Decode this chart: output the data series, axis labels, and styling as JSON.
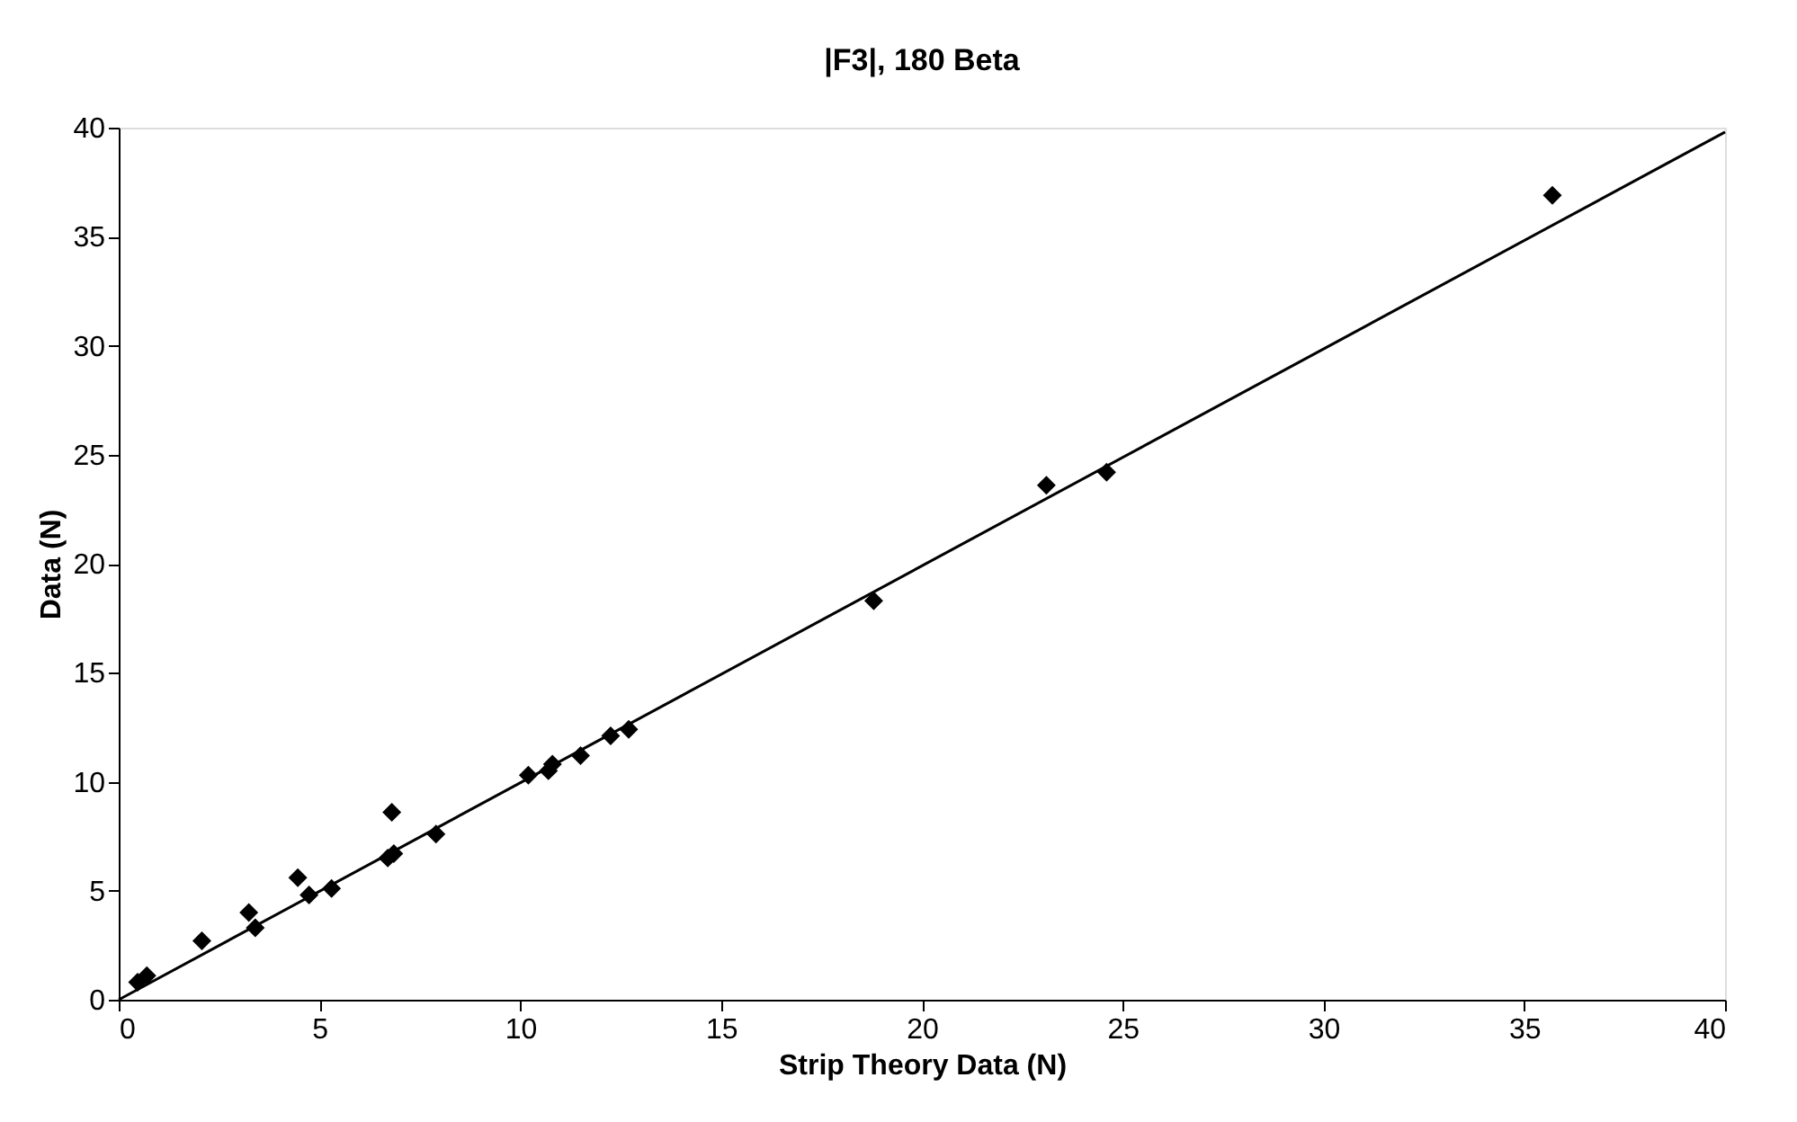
{
  "chart_data": {
    "type": "scatter",
    "title": "|F3|, 180 Beta",
    "xlabel": "Strip Theory Data (N)",
    "ylabel": "Data (N)",
    "xlim": [
      0,
      40
    ],
    "ylim": [
      0,
      40
    ],
    "xticks": [
      0,
      5,
      10,
      15,
      20,
      25,
      30,
      35,
      40
    ],
    "yticks": [
      0,
      5,
      10,
      15,
      20,
      25,
      30,
      35,
      40
    ],
    "grid": false,
    "series": [
      {
        "marker": "diamond",
        "color": "#000000",
        "x": [
          0.47,
          0.7,
          2.07,
          3.24,
          3.4,
          4.46,
          4.74,
          5.3,
          6.8,
          6.7,
          6.85,
          7.9,
          10.2,
          10.7,
          10.8,
          11.5,
          12.25,
          12.7,
          18.8,
          23.1,
          24.6,
          35.7
        ],
        "values": [
          0.8,
          1.1,
          2.7,
          4.0,
          3.3,
          5.6,
          4.8,
          5.1,
          8.6,
          6.5,
          6.7,
          7.6,
          10.3,
          10.5,
          10.8,
          11.2,
          12.1,
          12.4,
          18.3,
          23.6,
          24.2,
          36.9
        ]
      },
      {
        "type": "line",
        "color": "#000000",
        "x": [
          0,
          40
        ],
        "values": [
          0,
          39.8
        ]
      }
    ]
  }
}
